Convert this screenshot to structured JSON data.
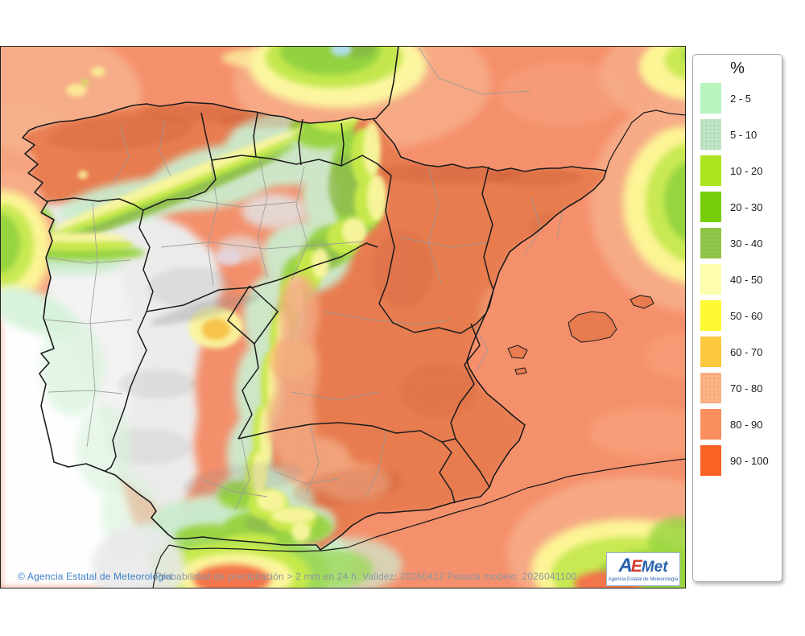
{
  "legend": {
    "title": "%",
    "items": [
      {
        "label": "2 - 5",
        "color": "#b7f4be",
        "textured": false
      },
      {
        "label": "5 - 10",
        "color": "#bfe4c4",
        "textured": true
      },
      {
        "label": "10 - 20",
        "color": "#abe51d",
        "textured": false
      },
      {
        "label": "20 - 30",
        "color": "#76ce0a",
        "textured": false
      },
      {
        "label": "30 - 40",
        "color": "#90c648",
        "textured": true
      },
      {
        "label": "40 - 50",
        "color": "#fefdae",
        "textured": false
      },
      {
        "label": "50 - 60",
        "color": "#fef832",
        "textured": false
      },
      {
        "label": "60 - 70",
        "color": "#fdc73e",
        "textured": false
      },
      {
        "label": "70 - 80",
        "color": "#fcb083",
        "textured": true
      },
      {
        "label": "80 - 90",
        "color": "#fa8e5c",
        "textured": false
      },
      {
        "label": "90 - 100",
        "color": "#f96125",
        "textured": false
      }
    ]
  },
  "footer": {
    "copyright": "© Agencia Estatal de Meteorología",
    "description": "Probabilidad de precipitación > 2 mm en 24 h. Validez: 20260412 Pasada modelo: 2026041100"
  },
  "logo": {
    "part_a": "A",
    "part_e": "E",
    "part_met": "Met",
    "subtitle": "Agencia Estatal de Meteorología"
  }
}
